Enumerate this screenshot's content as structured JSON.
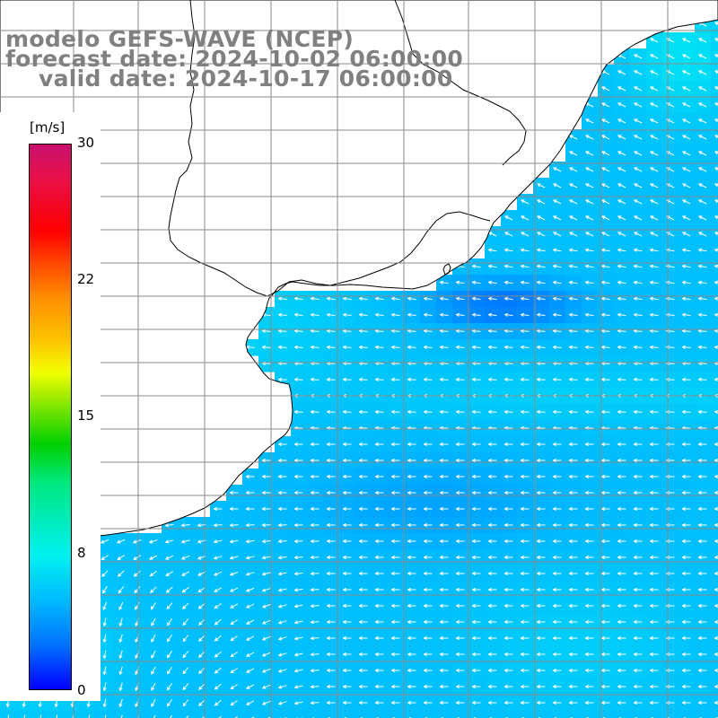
{
  "title": {
    "line1": "modelo GEFS-WAVE (NCEP)",
    "line2": "forecast date: 2024-10-02 06:00:00",
    "line3": "valid date: 2024-10-17 06:00:00"
  },
  "colorbar": {
    "unit": "[m/s]",
    "ticks": [
      "30",
      "22",
      "15",
      "8",
      "0"
    ],
    "tick_values": [
      30,
      22,
      15,
      8,
      0
    ],
    "range": [
      0,
      30
    ],
    "colors": [
      "#0000ff",
      "#0070ff",
      "#00b8ff",
      "#00f0f0",
      "#00e880",
      "#00d000",
      "#f0ff00",
      "#ffc400",
      "#ff8c00",
      "#ff0000",
      "#c8106e"
    ]
  },
  "map": {
    "ocean_base_color": "#1a9cff",
    "land_color": "#ffffff",
    "coastline_color": "#000000",
    "grid_color": "#8a8a8a",
    "arrow_color": "#ffffff",
    "dominant_wind_direction": "east-northeast winds blowing toward the west-southwest, backing to north near the southwest"
  }
}
